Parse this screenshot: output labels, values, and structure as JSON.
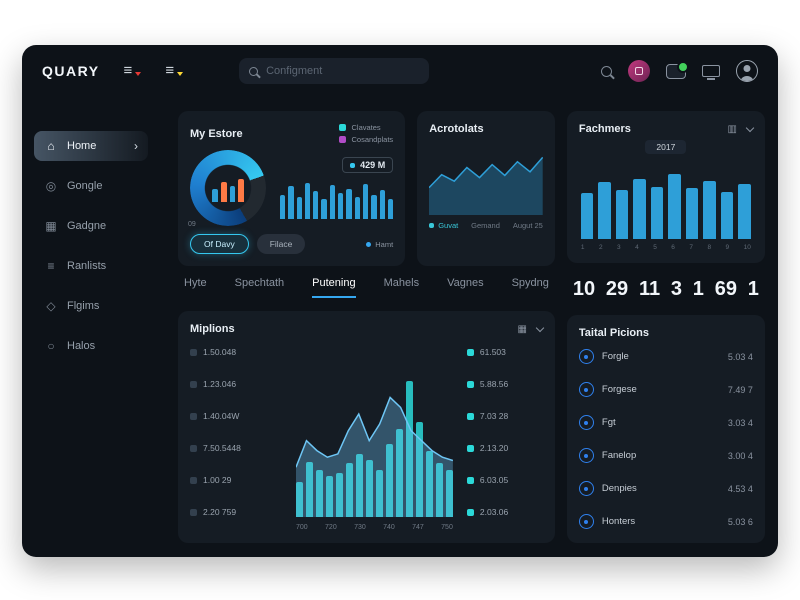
{
  "colors": {
    "accent_cyan": "#35c8f0",
    "accent_blue": "#2e9fd8",
    "teal": "#2bd9d9",
    "orange": "#ff7a45",
    "purple": "#b14cc7",
    "green": "#43d15c",
    "pink": "#c2397f"
  },
  "topbar": {
    "logo": "QUARY",
    "search_placeholder": "Configment"
  },
  "sidebar": {
    "items": [
      {
        "label": "Home",
        "glyph": "⌂",
        "icon": "home-icon"
      },
      {
        "label": "Gongle",
        "glyph": "◎",
        "icon": "globe-icon"
      },
      {
        "label": "Gadgne",
        "glyph": "▦",
        "icon": "grid-icon"
      },
      {
        "label": "Ranlists",
        "glyph": "≡",
        "icon": "list-icon"
      },
      {
        "label": "Flgims",
        "glyph": "◇",
        "icon": "flag-icon"
      },
      {
        "label": "Halos",
        "glyph": "○",
        "icon": "circle-icon"
      }
    ],
    "active_chevron": "›"
  },
  "my_estore": {
    "title": "My Estore",
    "legend": [
      {
        "label": "Clavates",
        "color": "#2bd9d9"
      },
      {
        "label": "Cosandplats",
        "color": "#b14cc7"
      }
    ],
    "gauge": {
      "percent": 78,
      "label": "09",
      "bars": {
        "values": [
          50,
          78,
          60,
          88
        ],
        "colors": [
          "#2e9fd8",
          "#ff7a45"
        ]
      }
    },
    "value": "429 M",
    "mini_bars": {
      "values": [
        60,
        82,
        55,
        90,
        70,
        50,
        85,
        64,
        76,
        55,
        88,
        60,
        72,
        50
      ],
      "color": "#2e9fd8"
    },
    "primary_button": "Of Davy",
    "secondary_button": "Filace",
    "footnote": "Hamt"
  },
  "acrotolats": {
    "title": "Acrotolats",
    "area": {
      "values": [
        38,
        56,
        47,
        66,
        52,
        70,
        55,
        74,
        60,
        80
      ],
      "color": "#2e9fd8"
    },
    "x_labels": [
      "Guvat",
      "Gemand",
      "Augut 25"
    ]
  },
  "fachmers": {
    "title": "Fachmers",
    "year": "2017",
    "bars": {
      "values": [
        58,
        72,
        62,
        76,
        66,
        82,
        64,
        74,
        60,
        70
      ],
      "color": "#2e9fd8"
    },
    "x_labels": [
      "1",
      "2",
      "3",
      "4",
      "5",
      "6",
      "7",
      "8",
      "9",
      "10"
    ],
    "stats": [
      "10",
      "29",
      "11",
      "3",
      "1",
      "69",
      "1"
    ]
  },
  "tabs": [
    {
      "label": "Hyte"
    },
    {
      "label": "Spechtath"
    },
    {
      "label": "Putening",
      "active": true
    },
    {
      "label": "Mahels"
    },
    {
      "label": "Vagnes"
    },
    {
      "label": "Spydng"
    }
  ],
  "miplions": {
    "title": "Miplions",
    "left_legend": [
      "1.50.048",
      "1.23.046",
      "1.40.04W",
      "7.50.5448",
      "1.00 29",
      "2.20 759"
    ],
    "right_legend": [
      "61.503",
      "5.88.56",
      "7.03 28",
      "2.13.20",
      "6.03.05",
      "2.03.06"
    ],
    "bars": {
      "values": [
        22,
        35,
        30,
        26,
        28,
        34,
        40,
        36,
        30,
        46,
        56,
        86,
        60,
        42,
        34,
        30
      ],
      "color": "#2bd9d9"
    },
    "area": {
      "values": [
        30,
        46,
        40,
        36,
        38,
        52,
        62,
        46,
        56,
        72,
        66,
        52,
        46,
        40,
        36,
        34
      ],
      "color": "#6ec6f5"
    },
    "x_labels": [
      "700",
      "720",
      "730",
      "740",
      "747",
      "750"
    ]
  },
  "taital_picions": {
    "title": "Taital Picions",
    "rows": [
      {
        "label": "Forgle",
        "value": "5.03 4"
      },
      {
        "label": "Forgese",
        "value": "7.49 7"
      },
      {
        "label": "Fgt",
        "value": "3.03 4"
      },
      {
        "label": "Fanelop",
        "value": "3.00 4"
      },
      {
        "label": "Denpies",
        "value": "4.53 4"
      },
      {
        "label": "Honters",
        "value": "5.03 6"
      }
    ]
  }
}
